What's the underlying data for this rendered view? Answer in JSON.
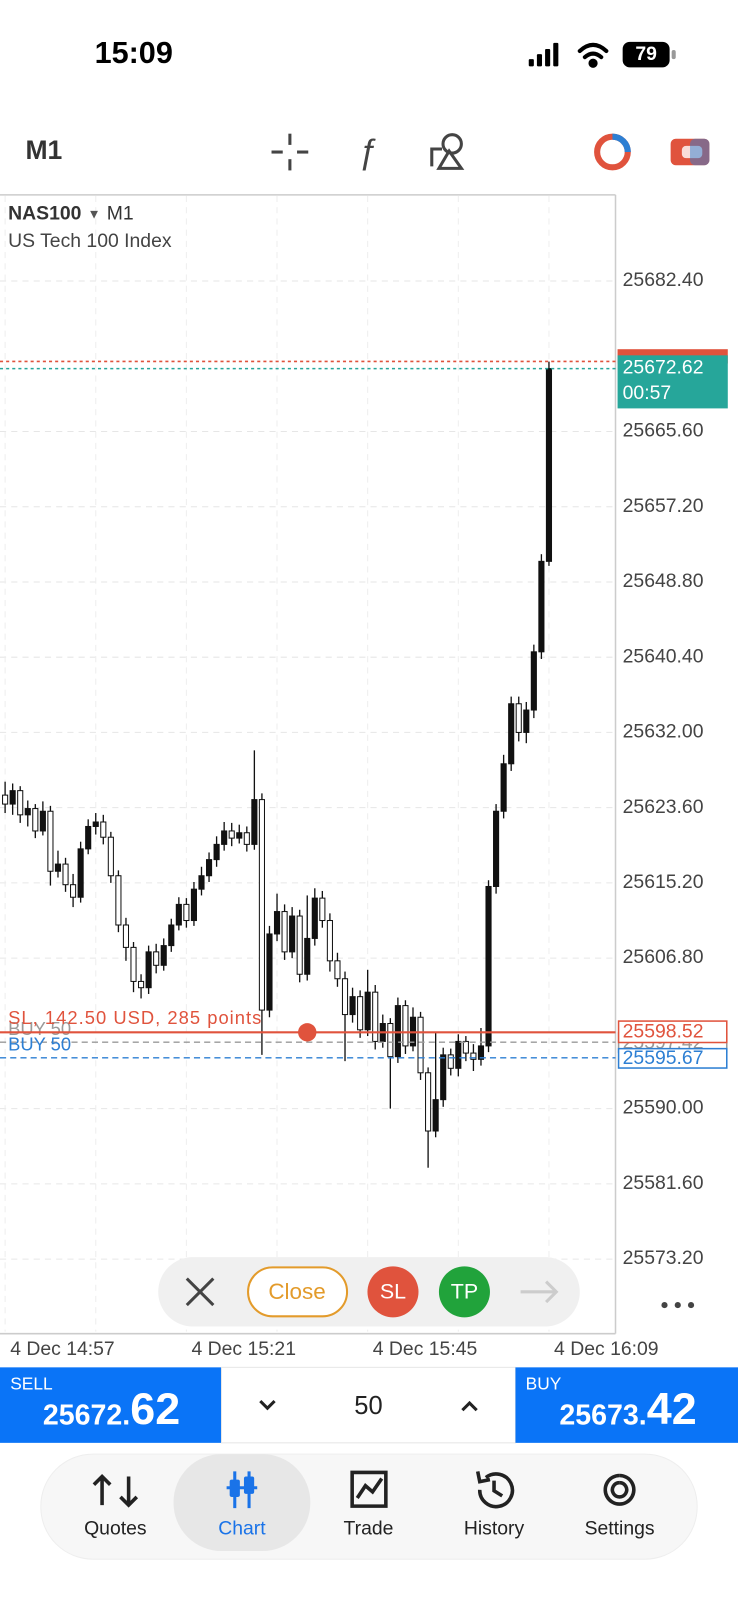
{
  "status_bar": {
    "time": "15:09",
    "battery": "79"
  },
  "toolbar": {
    "timeframe": "M1"
  },
  "chart_data": {
    "type": "candlestick",
    "symbol": "NAS100",
    "timeframe": "M1",
    "description": "US Tech 100 Index",
    "categories": [
      "4 Dec 14:57",
      null,
      null,
      null,
      null,
      null,
      null,
      null,
      null,
      null,
      null,
      null,
      null,
      null,
      null,
      null,
      null,
      null,
      null,
      null,
      null,
      null,
      null,
      null,
      "4 Dec 15:21",
      null,
      null,
      null,
      null,
      null,
      null,
      null,
      null,
      null,
      null,
      null,
      null,
      null,
      null,
      null,
      null,
      null,
      null,
      null,
      null,
      null,
      null,
      null,
      "4 Dec 15:45",
      null,
      null,
      null,
      null,
      null,
      null,
      null,
      null,
      null,
      null,
      null,
      null,
      null,
      null,
      null,
      null,
      null,
      null,
      null,
      null,
      null,
      null,
      null,
      "4 Dec 16:09"
    ],
    "open": [
      25625.0,
      25624.0,
      25625.5,
      25622.8,
      25623.5,
      25621.0,
      25623.2,
      25616.5,
      25617.3,
      25615.0,
      25613.6,
      25619.0,
      25621.5,
      25622.0,
      25620.3,
      25616.0,
      25610.5,
      25608.0,
      25604.2,
      25603.5,
      25607.5,
      25606.0,
      25608.2,
      25610.5,
      25612.8,
      25611.0,
      25614.5,
      25616.0,
      25617.8,
      25619.5,
      25621.0,
      25620.2,
      25620.8,
      25619.5,
      25624.5,
      25601.0,
      25609.5,
      25612.0,
      25607.5,
      25611.5,
      25605.0,
      25609.0,
      25613.5,
      25611.0,
      25606.5,
      25604.5,
      25600.5,
      25602.5,
      25598.8,
      25603.0,
      25597.5,
      25599.5,
      25595.8,
      25601.5,
      25597.0,
      25600.2,
      25594.0,
      25587.5,
      25591.0,
      25596.0,
      25594.5,
      25597.5,
      25596.2,
      25595.5,
      25597.0,
      25614.8,
      25623.2,
      25628.5,
      25635.2,
      25632.0,
      25634.5,
      25641.0,
      25651.1
    ],
    "high": [
      25626.5,
      25626.3,
      25626.0,
      25624.4,
      25624.0,
      25624.3,
      25623.8,
      25618.8,
      25618.0,
      25616.2,
      25619.8,
      25622.3,
      25623.0,
      25622.8,
      25620.9,
      25616.6,
      25611.3,
      25608.6,
      25605.0,
      25608.2,
      25608.4,
      25609.0,
      25611.2,
      25613.6,
      25613.5,
      25615.3,
      25617.0,
      25618.6,
      25620.4,
      25622.0,
      25621.9,
      25621.7,
      25621.5,
      25630.0,
      25625.2,
      25610.4,
      25614.0,
      25612.8,
      25612.5,
      25612.2,
      25613.8,
      25614.6,
      25614.3,
      25611.8,
      25607.4,
      25605.3,
      25603.5,
      25603.2,
      25605.5,
      25603.8,
      25600.5,
      25600.1,
      25602.4,
      25602.1,
      25601.3,
      25600.8,
      25594.6,
      25598.5,
      25596.8,
      25596.7,
      25598.3,
      25598.1,
      25597.2,
      25599.0,
      25615.5,
      25624.0,
      25629.5,
      25636.0,
      25636.0,
      25635.4,
      25641.8,
      25651.9,
      25673.4
    ],
    "low": [
      25623.0,
      25622.8,
      25621.9,
      25621.5,
      25620.2,
      25620.5,
      25614.9,
      25615.8,
      25614.2,
      25612.5,
      25613.0,
      25618.4,
      25620.6,
      25619.5,
      25615.2,
      25609.7,
      25606.5,
      25603.0,
      25602.3,
      25602.8,
      25605.1,
      25605.4,
      25607.5,
      25609.9,
      25610.2,
      25610.4,
      25613.8,
      25615.3,
      25617.0,
      25618.8,
      25619.3,
      25619.6,
      25618.7,
      25618.9,
      25596.0,
      25600.2,
      25608.7,
      25606.6,
      25606.8,
      25604.1,
      25604.3,
      25608.2,
      25610.2,
      25605.3,
      25603.6,
      25595.3,
      25599.6,
      25597.9,
      25598.1,
      25596.6,
      25596.8,
      25590.0,
      25595.1,
      25596.1,
      25596.4,
      25593.2,
      25583.4,
      25586.8,
      25590.2,
      25593.7,
      25593.6,
      25595.3,
      25594.2,
      25594.8,
      25596.3,
      25614.0,
      25622.4,
      25627.7,
      25631.0,
      25630.8,
      25633.6,
      25640.2,
      25650.6
    ],
    "close": [
      25624.0,
      25625.5,
      25622.8,
      25623.5,
      25621.0,
      25623.2,
      25616.5,
      25617.3,
      25615.0,
      25613.6,
      25619.0,
      25621.5,
      25622.0,
      25620.3,
      25616.0,
      25610.5,
      25608.0,
      25604.2,
      25603.5,
      25607.5,
      25606.0,
      25608.2,
      25610.5,
      25612.8,
      25611.0,
      25614.5,
      25616.0,
      25617.8,
      25619.5,
      25621.0,
      25620.2,
      25620.8,
      25619.5,
      25624.5,
      25601.0,
      25609.5,
      25612.0,
      25607.5,
      25611.5,
      25605.0,
      25609.0,
      25613.5,
      25611.0,
      25606.5,
      25604.5,
      25600.5,
      25602.5,
      25598.8,
      25603.0,
      25597.5,
      25599.5,
      25595.8,
      25601.5,
      25597.0,
      25600.2,
      25594.0,
      25587.5,
      25591.0,
      25596.0,
      25594.5,
      25597.5,
      25596.2,
      25595.5,
      25597.0,
      25614.8,
      25623.2,
      25628.5,
      25635.2,
      25632.0,
      25634.5,
      25641.0,
      25651.1,
      25672.62
    ],
    "up_color": "#111111",
    "down_color": "#ffffff",
    "ylim": [
      25565.1,
      25691.9
    ],
    "yticks": [
      {
        "value": 25682.4,
        "label": "25682.40"
      },
      {
        "value": 25665.6,
        "label": "25665.60"
      },
      {
        "value": 25657.2,
        "label": "25657.20"
      },
      {
        "value": 25648.8,
        "label": "25648.80"
      },
      {
        "value": 25640.4,
        "label": "25640.40"
      },
      {
        "value": 25632,
        "label": "25632.00"
      },
      {
        "value": 25623.6,
        "label": "25623.60"
      },
      {
        "value": 25615.2,
        "label": "25615.20"
      },
      {
        "value": 25606.8,
        "label": "25606.80"
      },
      {
        "value": 25590,
        "label": "25590.00"
      },
      {
        "value": 25581.6,
        "label": "25581.60"
      },
      {
        "value": 25573.2,
        "label": "25573.20"
      }
    ],
    "grid": true,
    "ask": {
      "value": 25673.42,
      "color": "#e0533d"
    },
    "bid": {
      "value": 25672.62,
      "timer": "00:57",
      "color": "#26a69a"
    },
    "stop_loss": {
      "value": 25598.52,
      "text": "SL, 142.50 USD, 285 points",
      "color": "#e0533d"
    },
    "positions": [
      {
        "value": 25597.42,
        "text": "BUY 50",
        "color": "#9a9a9a"
      },
      {
        "value": 25595.67,
        "text": "BUY 50",
        "color": "#2d7fd3"
      }
    ]
  },
  "order_bar": {
    "close": "Close",
    "sl": "SL",
    "tp": "TP"
  },
  "trade_panel": {
    "sell": {
      "label": "SELL",
      "price_integer": "25672.",
      "price_decimals": "62"
    },
    "volume": "50",
    "buy": {
      "label": "BUY",
      "price_integer": "25673.",
      "price_decimals": "42"
    }
  },
  "nav": [
    {
      "label": "Quotes"
    },
    {
      "label": "Chart",
      "active": true
    },
    {
      "label": "Trade"
    },
    {
      "label": "History"
    },
    {
      "label": "Settings"
    }
  ]
}
